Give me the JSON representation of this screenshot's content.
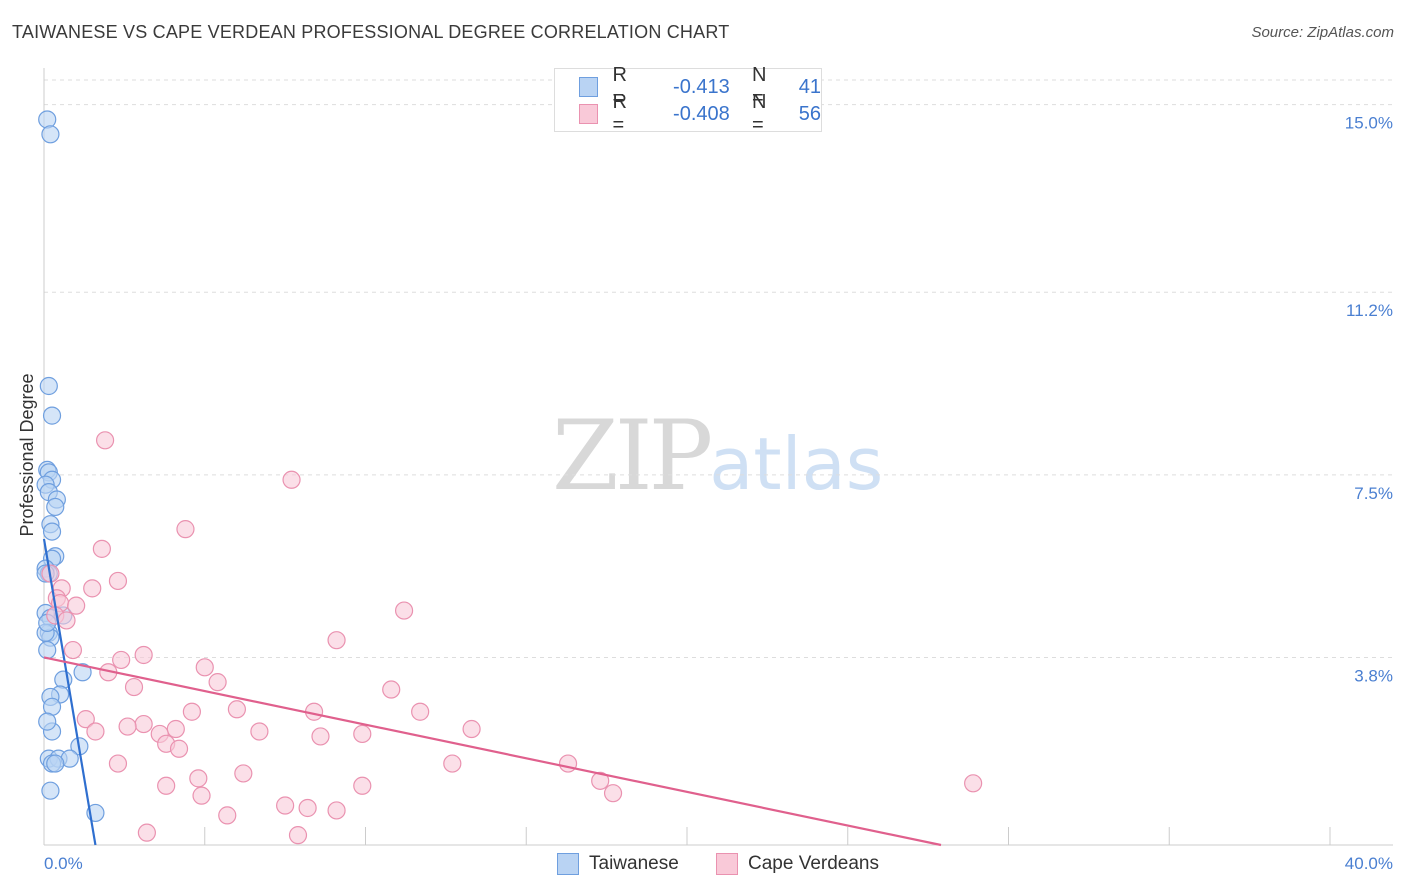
{
  "header": {
    "title": "TAIWANESE VS CAPE VERDEAN PROFESSIONAL DEGREE CORRELATION CHART",
    "source": "Source: ZipAtlas.com"
  },
  "watermark": {
    "zip": "ZIP",
    "atlas": "atlas"
  },
  "legend": {
    "rows": [
      {
        "r_label": "R =",
        "r_value": "-0.413",
        "n_label": "N =",
        "n_value": "41"
      },
      {
        "r_label": "R =",
        "r_value": "-0.408",
        "n_label": "N =",
        "n_value": "56"
      }
    ]
  },
  "colors": {
    "taiwanese_fill": "#b9d3f3",
    "taiwanese_stroke": "#6f9fdf",
    "taiwanese_line": "#2f6fcf",
    "cape_fill": "#f9c9d8",
    "cape_stroke": "#ea92b0",
    "cape_line": "#e0608d",
    "tick": "#4a7fd1",
    "grid": "#dddddd"
  },
  "chart_data": {
    "type": "scatter",
    "title": "TAIWANESE VS CAPE VERDEAN PROFESSIONAL DEGREE CORRELATION CHART",
    "xlabel": "",
    "ylabel": "Professional Degree",
    "xlim": [
      0,
      40
    ],
    "ylim": [
      0,
      15.5
    ],
    "x_tick_labels": [
      "0.0%",
      "40.0%"
    ],
    "y_ticks": [
      3.8,
      7.5,
      11.2,
      15.0
    ],
    "y_tick_labels": [
      "3.8%",
      "7.5%",
      "11.2%",
      "15.0%"
    ],
    "series": [
      {
        "name": "Taiwanese",
        "points": [
          [
            0.1,
            14.7
          ],
          [
            0.2,
            14.4
          ],
          [
            0.15,
            9.3
          ],
          [
            0.25,
            8.7
          ],
          [
            0.1,
            7.6
          ],
          [
            0.15,
            7.55
          ],
          [
            0.25,
            7.4
          ],
          [
            0.05,
            7.3
          ],
          [
            0.15,
            7.15
          ],
          [
            0.4,
            7.0
          ],
          [
            0.35,
            6.85
          ],
          [
            0.2,
            6.5
          ],
          [
            0.25,
            6.35
          ],
          [
            0.35,
            5.85
          ],
          [
            0.25,
            5.8
          ],
          [
            0.05,
            5.6
          ],
          [
            0.15,
            5.5
          ],
          [
            0.05,
            4.7
          ],
          [
            0.2,
            4.6
          ],
          [
            0.15,
            4.3
          ],
          [
            0.2,
            4.2
          ],
          [
            0.05,
            4.3
          ],
          [
            0.1,
            3.95
          ],
          [
            0.6,
            4.65
          ],
          [
            1.2,
            3.5
          ],
          [
            0.6,
            3.35
          ],
          [
            0.5,
            3.05
          ],
          [
            0.2,
            3.0
          ],
          [
            0.25,
            2.8
          ],
          [
            0.25,
            2.3
          ],
          [
            1.1,
            2.0
          ],
          [
            0.15,
            1.75
          ],
          [
            0.45,
            1.75
          ],
          [
            0.8,
            1.75
          ],
          [
            0.25,
            1.65
          ],
          [
            0.35,
            1.65
          ],
          [
            0.2,
            1.1
          ],
          [
            1.6,
            0.65
          ],
          [
            0.1,
            4.5
          ],
          [
            0.05,
            5.5
          ],
          [
            0.1,
            2.5
          ]
        ]
      },
      {
        "name": "Cape Verdeans",
        "points": [
          [
            1.9,
            8.2
          ],
          [
            7.7,
            7.4
          ],
          [
            4.4,
            6.4
          ],
          [
            1.8,
            6.0
          ],
          [
            2.3,
            5.35
          ],
          [
            1.5,
            5.2
          ],
          [
            0.55,
            5.2
          ],
          [
            0.4,
            5.0
          ],
          [
            0.5,
            4.9
          ],
          [
            1.0,
            4.85
          ],
          [
            11.2,
            4.75
          ],
          [
            0.35,
            4.65
          ],
          [
            0.7,
            4.55
          ],
          [
            9.1,
            4.15
          ],
          [
            0.9,
            3.95
          ],
          [
            3.1,
            3.85
          ],
          [
            2.4,
            3.75
          ],
          [
            5.0,
            3.6
          ],
          [
            2.0,
            3.5
          ],
          [
            5.4,
            3.3
          ],
          [
            2.8,
            3.2
          ],
          [
            10.8,
            3.15
          ],
          [
            6.0,
            2.75
          ],
          [
            4.6,
            2.7
          ],
          [
            8.4,
            2.7
          ],
          [
            11.7,
            2.7
          ],
          [
            1.3,
            2.55
          ],
          [
            3.1,
            2.45
          ],
          [
            2.6,
            2.4
          ],
          [
            4.1,
            2.35
          ],
          [
            6.7,
            2.3
          ],
          [
            1.6,
            2.3
          ],
          [
            13.3,
            2.35
          ],
          [
            8.6,
            2.2
          ],
          [
            9.9,
            2.25
          ],
          [
            3.6,
            2.25
          ],
          [
            3.8,
            2.05
          ],
          [
            4.2,
            1.95
          ],
          [
            2.3,
            1.65
          ],
          [
            12.7,
            1.65
          ],
          [
            16.3,
            1.65
          ],
          [
            6.2,
            1.45
          ],
          [
            4.8,
            1.35
          ],
          [
            17.3,
            1.3
          ],
          [
            3.8,
            1.2
          ],
          [
            9.9,
            1.2
          ],
          [
            28.9,
            1.25
          ],
          [
            17.7,
            1.05
          ],
          [
            4.9,
            1.0
          ],
          [
            7.5,
            0.8
          ],
          [
            8.2,
            0.75
          ],
          [
            9.1,
            0.7
          ],
          [
            5.7,
            0.6
          ],
          [
            3.2,
            0.25
          ],
          [
            7.9,
            0.2
          ],
          [
            0.2,
            5.5
          ]
        ]
      }
    ],
    "trend_lines": [
      {
        "series": "Taiwanese",
        "from": [
          0.0,
          6.2
        ],
        "to": [
          1.6,
          0.0
        ]
      },
      {
        "series": "Cape Verdeans",
        "from": [
          0.0,
          3.8
        ],
        "to": [
          27.9,
          0.0
        ]
      }
    ],
    "legend_entries": [
      "Taiwanese",
      "Cape Verdeans"
    ],
    "grid": true
  }
}
